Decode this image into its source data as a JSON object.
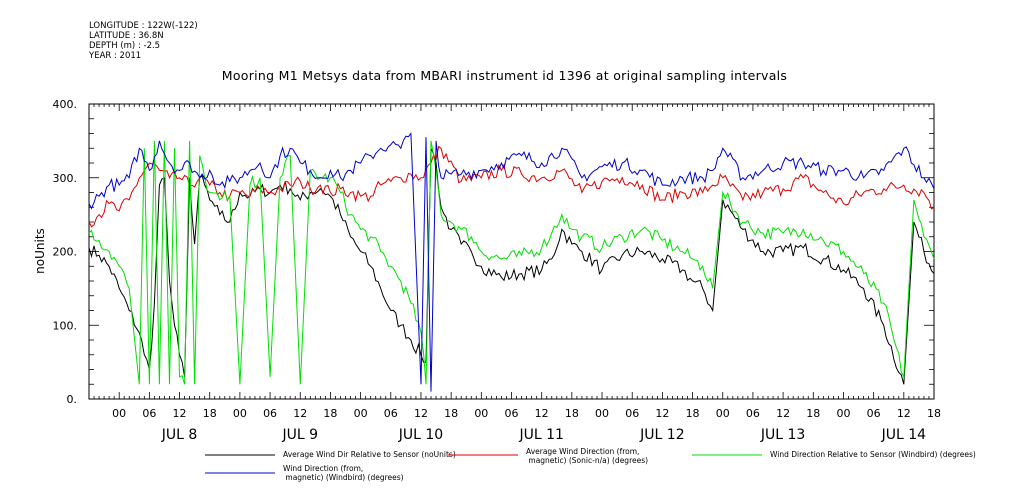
{
  "meta": {
    "longitude": "LONGITUDE : 122W(-122)",
    "latitude": "LATITUDE : 36.8N",
    "depth": "DEPTH (m) : -2.5",
    "year": "YEAR : 2011"
  },
  "chart_data": {
    "type": "line",
    "title": "Mooring M1 Metsys data from MBARI instrument id 1396 at original sampling intervals",
    "ylabel": "noUnits",
    "ylim": [
      0,
      400
    ],
    "yticks": [
      "0.",
      "100.",
      "200.",
      "300.",
      "400."
    ],
    "xlim_hours": [
      -6,
      162
    ],
    "hour_ticks": [
      "00",
      "06",
      "12",
      "18",
      "00",
      "06",
      "12",
      "18",
      "00",
      "06",
      "12",
      "18",
      "00",
      "06",
      "12",
      "18",
      "00",
      "06",
      "12",
      "18",
      "00",
      "06",
      "12",
      "18",
      "00",
      "06",
      "12",
      "18"
    ],
    "day_labels": [
      "JUL  8",
      "JUL  9",
      "JUL 10",
      "JUL 11",
      "JUL 12",
      "JUL 13",
      "JUL 14"
    ],
    "grid": false,
    "legend_position": "bottom",
    "x_units": "hours since 2011-07-08 00:00",
    "series": [
      {
        "name": "Average Wind Dir Relative to Sensor (noUnits)",
        "color": "#000000",
        "x": [
          -6,
          -4,
          -2,
          0,
          2,
          4,
          5,
          6,
          7,
          8,
          9,
          10,
          11,
          12,
          13,
          14,
          15,
          16,
          17,
          18,
          20,
          22,
          24,
          26,
          28,
          30,
          32,
          34,
          36,
          38,
          40,
          42,
          44,
          46,
          48,
          50,
          52,
          54,
          56,
          58,
          60,
          61,
          62,
          63,
          64,
          66,
          68,
          70,
          72,
          76,
          80,
          84,
          86,
          88,
          90,
          92,
          96,
          100,
          104,
          108,
          112,
          114,
          116,
          118,
          120,
          124,
          128,
          132,
          136,
          140,
          144,
          148,
          152,
          156,
          158,
          160,
          162
        ],
        "y": [
          205,
          195,
          180,
          150,
          120,
          90,
          60,
          40,
          130,
          290,
          300,
          160,
          100,
          60,
          30,
          300,
          210,
          300,
          290,
          270,
          250,
          240,
          280,
          275,
          285,
          280,
          290,
          285,
          270,
          280,
          285,
          275,
          250,
          220,
          200,
          180,
          150,
          120,
          100,
          80,
          60,
          50,
          340,
          320,
          260,
          230,
          210,
          200,
          180,
          165,
          170,
          175,
          190,
          230,
          210,
          200,
          175,
          195,
          200,
          190,
          175,
          160,
          150,
          120,
          270,
          230,
          200,
          200,
          205,
          190,
          175,
          150,
          100,
          20,
          240,
          200,
          170
        ]
      },
      {
        "name": "Average Wind Direction (from, magnetic) (Sonic-n/a) (degrees)",
        "color": "#dd0000",
        "x": [
          -6,
          -4,
          -2,
          0,
          2,
          4,
          6,
          8,
          10,
          12,
          14,
          16,
          18,
          20,
          22,
          24,
          26,
          28,
          30,
          32,
          34,
          36,
          38,
          40,
          42,
          44,
          46,
          48,
          50,
          52,
          54,
          56,
          58,
          60,
          62,
          64,
          68,
          72,
          76,
          80,
          84,
          88,
          92,
          96,
          100,
          104,
          108,
          112,
          116,
          118,
          120,
          124,
          128,
          132,
          136,
          140,
          144,
          148,
          152,
          156,
          160,
          162
        ],
        "y": [
          240,
          250,
          265,
          255,
          270,
          300,
          320,
          310,
          300,
          300,
          290,
          300,
          290,
          280,
          275,
          280,
          275,
          285,
          280,
          285,
          290,
          295,
          285,
          290,
          280,
          285,
          280,
          275,
          275,
          290,
          295,
          300,
          305,
          300,
          320,
          340,
          295,
          300,
          310,
          305,
          300,
          310,
          280,
          295,
          300,
          290,
          270,
          280,
          280,
          290,
          300,
          270,
          280,
          285,
          300,
          280,
          265,
          280,
          285,
          290,
          280,
          260
        ]
      },
      {
        "name": "Wind Direction Relative to Sensor (Windbird) (degrees)",
        "color": "#00e000",
        "x": [
          -6,
          -4,
          -2,
          0,
          2,
          4,
          5,
          6,
          7,
          8,
          9,
          10,
          11,
          12,
          13,
          14,
          15,
          16,
          17,
          18,
          20,
          22,
          24,
          26,
          28,
          30,
          32,
          34,
          36,
          38,
          40,
          42,
          44,
          46,
          48,
          50,
          52,
          54,
          56,
          58,
          60,
          61,
          62,
          63,
          64,
          66,
          68,
          70,
          72,
          76,
          80,
          84,
          86,
          88,
          90,
          92,
          96,
          100,
          104,
          108,
          112,
          114,
          116,
          118,
          120,
          124,
          128,
          132,
          136,
          140,
          144,
          148,
          152,
          156,
          158,
          160,
          162
        ],
        "y": [
          225,
          215,
          200,
          180,
          150,
          20,
          340,
          20,
          350,
          20,
          350,
          20,
          340,
          30,
          20,
          350,
          20,
          330,
          300,
          280,
          270,
          275,
          20,
          290,
          300,
          30,
          300,
          330,
          20,
          310,
          300,
          300,
          280,
          250,
          230,
          220,
          200,
          180,
          160,
          130,
          90,
          20,
          350,
          310,
          250,
          240,
          230,
          220,
          200,
          190,
          195,
          205,
          225,
          250,
          230,
          220,
          205,
          220,
          230,
          215,
          200,
          190,
          180,
          150,
          280,
          240,
          225,
          225,
          230,
          215,
          200,
          170,
          130,
          30,
          270,
          220,
          190
        ]
      },
      {
        "name": "Wind Direction (from, magnetic) (Windbird) (degrees)",
        "color": "#0000cc",
        "x": [
          -6,
          -4,
          -2,
          0,
          2,
          4,
          6,
          8,
          10,
          12,
          14,
          16,
          18,
          20,
          22,
          24,
          26,
          28,
          30,
          32,
          34,
          36,
          38,
          40,
          42,
          44,
          46,
          48,
          50,
          52,
          54,
          56,
          58,
          60,
          61,
          62,
          63,
          64,
          66,
          68,
          72,
          76,
          80,
          84,
          88,
          92,
          96,
          100,
          104,
          108,
          112,
          116,
          118,
          120,
          124,
          128,
          132,
          136,
          140,
          144,
          148,
          152,
          156,
          160,
          162
        ],
        "y": [
          265,
          275,
          290,
          290,
          300,
          340,
          310,
          350,
          320,
          310,
          320,
          300,
          310,
          290,
          295,
          300,
          310,
          320,
          300,
          330,
          340,
          320,
          310,
          300,
          310,
          300,
          310,
          320,
          330,
          340,
          345,
          340,
          360,
          20,
          355,
          10,
          350,
          300,
          305,
          305,
          310,
          320,
          330,
          320,
          340,
          300,
          315,
          320,
          310,
          290,
          300,
          300,
          310,
          340,
          300,
          310,
          320,
          320,
          310,
          310,
          300,
          310,
          340,
          300,
          285
        ]
      }
    ]
  }
}
